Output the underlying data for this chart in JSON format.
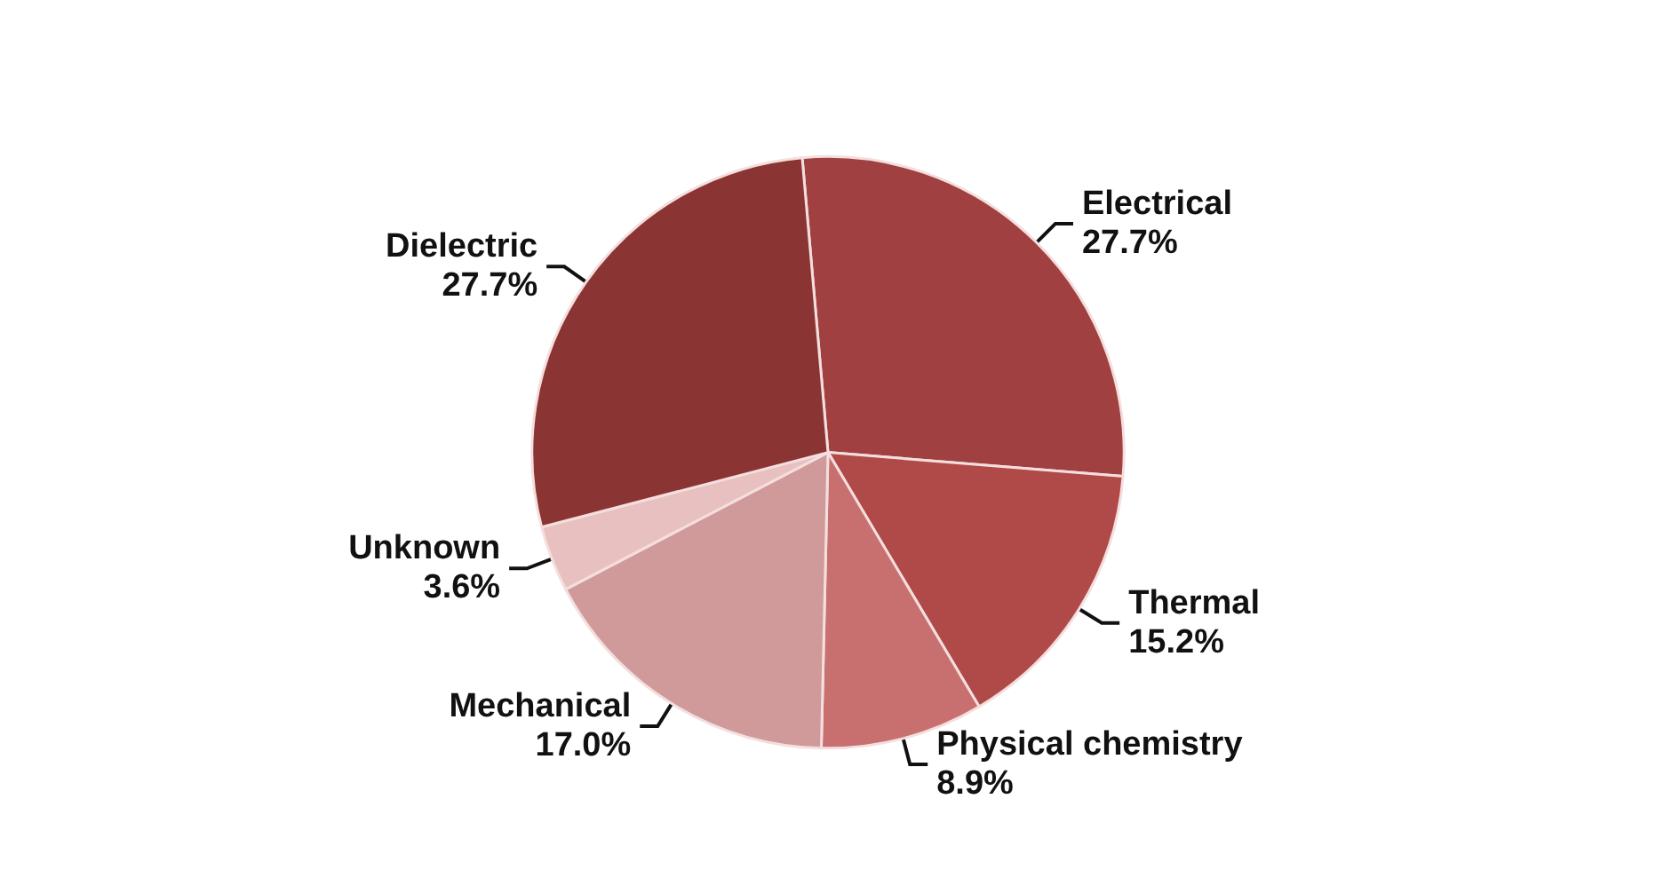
{
  "chart_data": {
    "type": "pie",
    "categories": [
      "Electrical",
      "Thermal",
      "Physical chemistry",
      "Mechanical",
      "Unknown",
      "Dielectric"
    ],
    "values": [
      27.7,
      15.2,
      8.9,
      17.0,
      3.6,
      27.7
    ],
    "value_labels": [
      "27.7%",
      "15.2%",
      "8.9%",
      "17.0%",
      "3.6%",
      "27.7%"
    ],
    "colors": [
      "#a04040",
      "#b04a48",
      "#c87070",
      "#d09a9a",
      "#e8c0c0",
      "#8a3434"
    ],
    "legend": false
  }
}
